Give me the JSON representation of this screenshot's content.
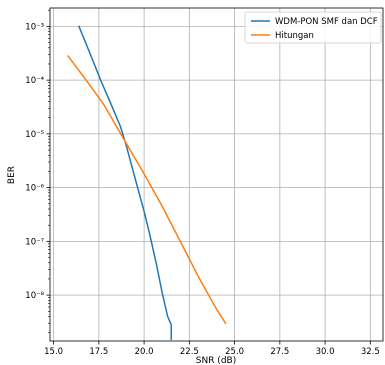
{
  "chart_data": {
    "type": "line",
    "title": "",
    "xlabel": "SNR (dB)",
    "ylabel": "BER",
    "x_scale": "linear",
    "y_scale": "log",
    "xlim": [
      14.8,
      33.2
    ],
    "ylim": [
      1.4e-09,
      0.0022
    ],
    "grid": true,
    "legend_position": "top-right",
    "x_ticks": [
      15.0,
      17.5,
      20.0,
      22.5,
      25.0,
      27.5,
      30.0,
      32.5
    ],
    "x_tick_labels": [
      "15.0",
      "17.5",
      "20.0",
      "22.5",
      "25.0",
      "27.5",
      "30.0",
      "32.5"
    ],
    "y_ticks": [
      0.001,
      0.0001,
      1e-05,
      1e-06,
      1e-07,
      1e-08
    ],
    "y_tick_labels": [
      "10⁻³",
      "10⁻⁴",
      "10⁻⁵",
      "10⁻⁶",
      "10⁻⁷",
      "10⁻⁸"
    ],
    "series": [
      {
        "name": "WDM-PON SMF dan DCF",
        "color": "#1f77b4",
        "x": [
          16.4,
          17.0,
          17.6,
          18.2,
          18.7,
          19.0,
          19.5,
          20.0,
          20.3,
          20.7,
          21.0,
          21.3,
          21.5,
          21.5
        ],
        "y": [
          0.001,
          0.00032,
          0.0001,
          3.4e-05,
          1.35e-05,
          6.3e-06,
          1.5e-06,
          3.6e-07,
          1.4e-07,
          3.5e-08,
          1.1e-08,
          4e-09,
          2.8e-09,
          1.5e-09
        ]
      },
      {
        "name": "Hitungan",
        "color": "#ff7f0e",
        "x": [
          15.8,
          16.8,
          17.8,
          19.0,
          20.0,
          21.0,
          22.0,
          23.0,
          24.0,
          24.5
        ],
        "y": [
          0.00028,
          0.0001,
          3.4e-05,
          6.8e-06,
          1.8e-06,
          4.5e-07,
          1e-07,
          2.2e-08,
          5.5e-09,
          3e-09
        ]
      }
    ]
  }
}
